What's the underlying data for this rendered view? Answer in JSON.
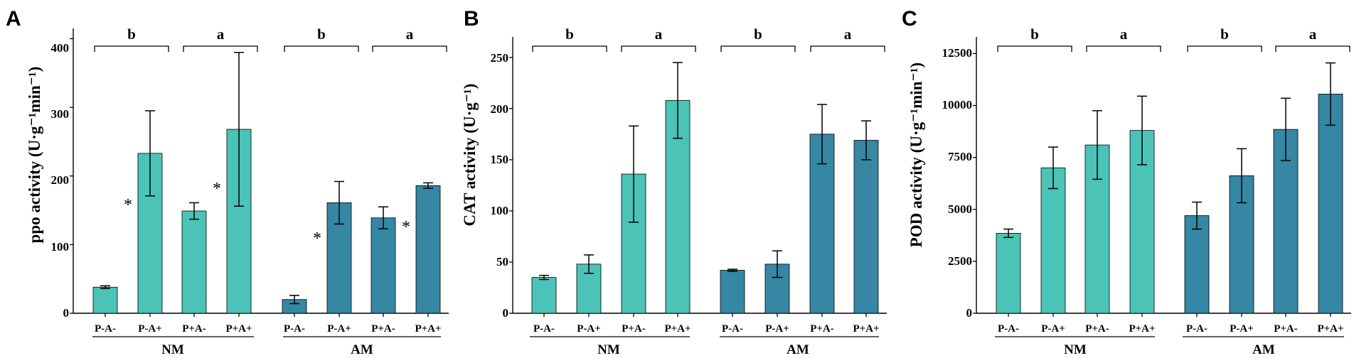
{
  "figure": {
    "colors": {
      "NM": "#4bc3b6",
      "AM": "#3587a3",
      "axis": "#000000"
    },
    "group_labels": [
      "NM",
      "AM"
    ],
    "significance_letters": [
      "b",
      "a",
      "b",
      "a"
    ]
  },
  "chart_data": [
    {
      "type": "bar",
      "panel": "A",
      "ylabel": "ppo activity (U·g⁻¹min⁻¹)",
      "ylim": [
        0,
        415
      ],
      "yticks": [
        0,
        100,
        200,
        300,
        400
      ],
      "tick_labels": [
        "0",
        "100",
        "200",
        "300",
        "400"
      ],
      "categories": [
        "P-A-",
        "P-A+",
        "P+A-",
        "P+A+",
        "P-A-",
        "P-A+",
        "P+A-",
        "P+A+"
      ],
      "groups": [
        "NM",
        "NM",
        "NM",
        "NM",
        "AM",
        "AM",
        "AM",
        "AM"
      ],
      "values": [
        38,
        233,
        149,
        268,
        20,
        161,
        139,
        186
      ],
      "errors": [
        2,
        62,
        12,
        112,
        6,
        31,
        16,
        4
      ],
      "annotations": [
        "",
        "*",
        "",
        "*",
        "",
        "*",
        "",
        "*"
      ]
    },
    {
      "type": "bar",
      "panel": "B",
      "ylabel": "CAT activity (U·g⁻¹)",
      "ylim": [
        0,
        270
      ],
      "yticks": [
        0,
        50,
        100,
        150,
        200,
        250
      ],
      "tick_labels": [
        "0",
        "50",
        "100",
        "150",
        "200",
        "250"
      ],
      "categories": [
        "P-A-",
        "P-A+",
        "P+A-",
        "P+A+",
        "P-A-",
        "P-A+",
        "P+A-",
        "P+A+"
      ],
      "groups": [
        "NM",
        "NM",
        "NM",
        "NM",
        "AM",
        "AM",
        "AM",
        "AM"
      ],
      "values": [
        35,
        48,
        136,
        208,
        42,
        48,
        175,
        169
      ],
      "errors": [
        2,
        9,
        47,
        37,
        1,
        13,
        29,
        19
      ],
      "annotations": [
        "",
        "",
        "",
        "",
        "",
        "",
        "",
        ""
      ]
    },
    {
      "type": "bar",
      "panel": "C",
      "ylabel": "POD activity (U·g⁻¹min⁻¹)",
      "ylim": [
        0,
        13300
      ],
      "yticks": [
        0,
        2500,
        5000,
        7500,
        10000,
        12500
      ],
      "tick_labels": [
        "0",
        "2500",
        "5000",
        "7500",
        "10000",
        "12500"
      ],
      "categories": [
        "P-A-",
        "P-A+",
        "P+A-",
        "P+A+",
        "P-A-",
        "P-A+",
        "P+A-",
        "P+A+"
      ],
      "groups": [
        "NM",
        "NM",
        "NM",
        "NM",
        "AM",
        "AM",
        "AM",
        "AM"
      ],
      "values": [
        3850,
        7000,
        8100,
        8800,
        4700,
        6620,
        8850,
        10550
      ],
      "errors": [
        200,
        1000,
        1650,
        1650,
        650,
        1300,
        1500,
        1500
      ],
      "annotations": [
        "",
        "",
        "",
        "",
        "",
        "",
        "",
        ""
      ]
    }
  ]
}
